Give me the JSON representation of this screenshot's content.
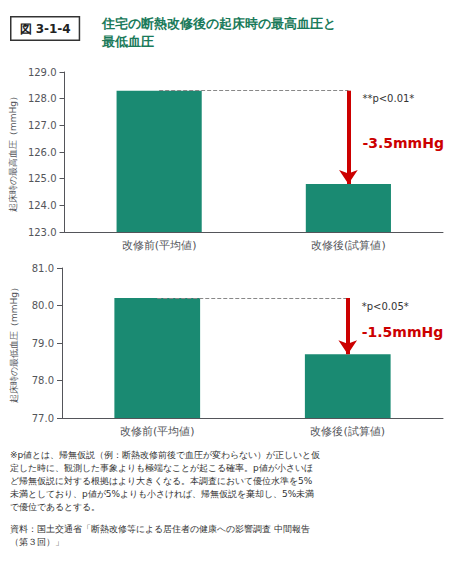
{
  "title": "住宅の断熱改修後の起床時の最高血圧と\n最低血圧",
  "subtitle": "図 3-1-4",
  "annotations": [
    "※p値とは、帰無仮説（例：断熱改修前後で血圧が変わらない）が正しいと仮\n定した時に、観測した事象よりも極端なことが起こる確率。p値が小さいほ\nど帰無仮説に対する根拠はより大きくなる。本調査において優位水準を5%\n未満としており、p値が5%よりも小さければ、帰無仮説を棄却し、5%未満\nで優位であるとする。",
    "資料：国土交通省「断熱改修等による居住者の健康への影響調査 中間報告\n（第３回）」"
  ],
  "chart_data": [
    {
      "type": "bar",
      "ylabel": "起床時の最高血圧（mmHg）",
      "categories": [
        "改修前(平均値)",
        "改修後(試算値)"
      ],
      "values": [
        128.3,
        124.8
      ],
      "color": "#1a8a72",
      "ylim": [
        123.0,
        129.0
      ],
      "yticks": [
        {
          "value": 123,
          "label": "123.0"
        },
        {
          "value": 124,
          "label": "124.0"
        },
        {
          "value": 125,
          "label": "125.0"
        },
        {
          "value": 126,
          "label": "126.0"
        },
        {
          "value": 127,
          "label": "127.0"
        },
        {
          "value": 128,
          "label": "128.0"
        },
        {
          "value": 129,
          "label": "129.0"
        }
      ],
      "grid": false,
      "annotations": [
        {
          "text": "**p<0.01*"
        },
        {
          "text": "-3.5mmHg",
          "color": "#cc0000"
        }
      ]
    },
    {
      "type": "bar",
      "ylabel": "起床時の最低血圧（mmHg）",
      "categories": [
        "改修前(平均値)",
        "改修後(試算値)"
      ],
      "values": [
        80.2,
        78.7
      ],
      "color": "#1a8a72",
      "ylim": [
        77.0,
        81.0
      ],
      "yticks": [
        {
          "value": 77,
          "label": "77.0"
        },
        {
          "value": 78,
          "label": "78.0"
        },
        {
          "value": 79,
          "label": "79.0"
        },
        {
          "value": 80,
          "label": "80.0"
        },
        {
          "value": 81,
          "label": "81.0"
        }
      ],
      "grid": false,
      "annotations": [
        {
          "text": "*p<0.05*"
        },
        {
          "text": "-1.5mmHg",
          "color": "#cc0000"
        }
      ]
    }
  ]
}
